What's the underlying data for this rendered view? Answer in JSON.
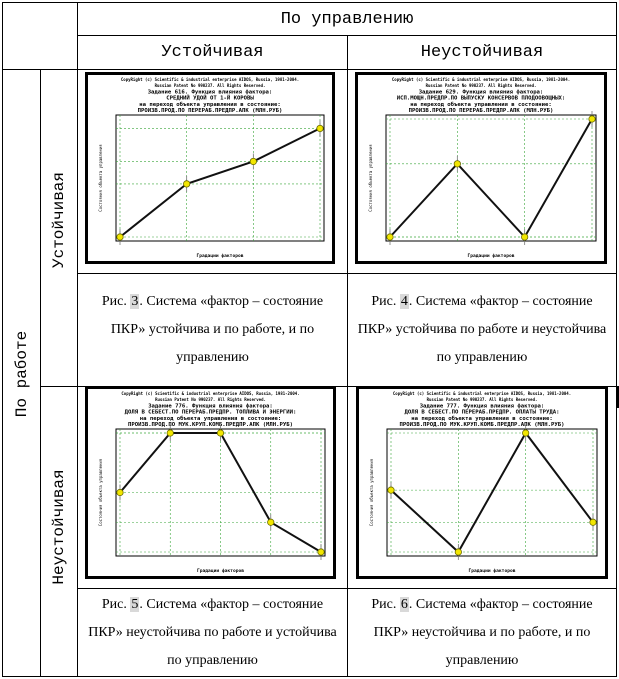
{
  "header": {
    "top": "По управлению",
    "col1": "Устойчивая",
    "col2": "Неустойчивая"
  },
  "rows": {
    "main": "По работе",
    "row1": "Устойчивая",
    "row2": "Неустойчивая"
  },
  "plots": [
    {
      "lines": [
        "CopyRight (c) Scientific & industrial enterprise AIDOS, Russia, 1981-2004.",
        "Russian Patent No 990237. All Rights Reserved.",
        "Задание 616. Функция влияния фактора:",
        "СРЕДНИЙ УДОЙ ОТ 1-Й КОРОВЫ",
        "на переход объекта управления в состояние:",
        "ПРОИЗВ.ПРОД.ПО ПЕРЕРАБ.ПРЕДПР.АПК (МЛН.РУБ)"
      ],
      "xlabel": "Градации факторов",
      "ylabel": "Состояния объекта управления",
      "points": [
        [
          0,
          0
        ],
        [
          1,
          0.45
        ],
        [
          2,
          0.64
        ],
        [
          3,
          0.92
        ]
      ]
    },
    {
      "lines": [
        "CopyRight (c) Scientific & industrial enterprise AIDOS, Russia, 1981-2004.",
        "Russian Patent No 990237. All Rights Reserved.",
        "Задание 629. Функция влияния фактора:",
        "ИСП.МОЩН.ПРЕДПР.ПО ВЫПУСКУ КОНСЕРВОВ ПЛОДООВОЩНЫХ:",
        "на переход объекта управления в состояние:",
        "ПРОИЗВ.ПРОД.ПО ПЕРЕРАБ.ПРЕДПР.АПК (МЛН.РУБ)"
      ],
      "xlabel": "Градации факторов",
      "ylabel": "Состояния объекта управления",
      "points": [
        [
          0,
          0
        ],
        [
          1,
          0.62
        ],
        [
          2,
          0
        ],
        [
          3,
          1
        ]
      ]
    },
    {
      "lines": [
        "CopyRight (c) Scientific & industrial enterprise AIDOS, Russia, 1981-2004.",
        "Russian Patent No 990237. All Rights Reserved.",
        "Задание 776. Функция влияния фактора:",
        "ДОЛЯ В СЕБЕСТ.ПО ПЕРЕРАБ.ПРЕДПР. ТОПЛИВА И ЭНЕРГИИ:",
        "на переход объекта управления в состояние:",
        "ПРОИЗВ.ПРОД.ПО МУК.КРУП.КОМБ.ПРЕДПР.АПК (МЛН.РУБ)"
      ],
      "xlabel": "Градации факторов",
      "ylabel": "Состояния объекта управления",
      "points": [
        [
          0,
          0.5
        ],
        [
          1,
          1
        ],
        [
          2,
          1
        ],
        [
          3,
          0.25
        ],
        [
          4,
          0
        ]
      ]
    },
    {
      "lines": [
        "CopyRight (c) Scientific & industrial enterprise AIDOS, Russia, 1981-2004.",
        "Russian Patent No 990237. All Rights Reserved.",
        "Задание 777. Функция влияния фактора:",
        "ДОЛЯ В СЕБЕСТ.ПО ПЕРЕРАБ.ПРЕДПР. ОПЛАТЫ ТРУДА:",
        "на переход объекта управления в состояние:",
        "ПРОИЗВ.ПРОД.ПО МУК.КРУП.КОМБ.ПРЕДПР.АПК (МЛН.РУБ)"
      ],
      "xlabel": "Градации факторов",
      "ylabel": "Состояния объекта управления",
      "points": [
        [
          0,
          0.52
        ],
        [
          1,
          0
        ],
        [
          2,
          1
        ],
        [
          3,
          0.25
        ]
      ]
    }
  ],
  "captions": [
    {
      "pre": "Рис. ",
      "num": "3",
      "post": ". Система «фактор – состояние ПКР» устойчива и по работе, и по управлению"
    },
    {
      "pre": "Рис.  ",
      "num": "4",
      "post": ". Система «фактор – состояние ПКР» устойчива по работе и неустойчива по управлению"
    },
    {
      "pre": "Рис.  ",
      "num": "5",
      "post": ". Система «фактор – состояние ПКР» неустойчива по работе и устойчива по управлению"
    },
    {
      "pre": "Рис. ",
      "num": "6",
      "post": ". Система «фактор – состояние ПКР»  неустойчива и по работе, и по управлению"
    }
  ]
}
